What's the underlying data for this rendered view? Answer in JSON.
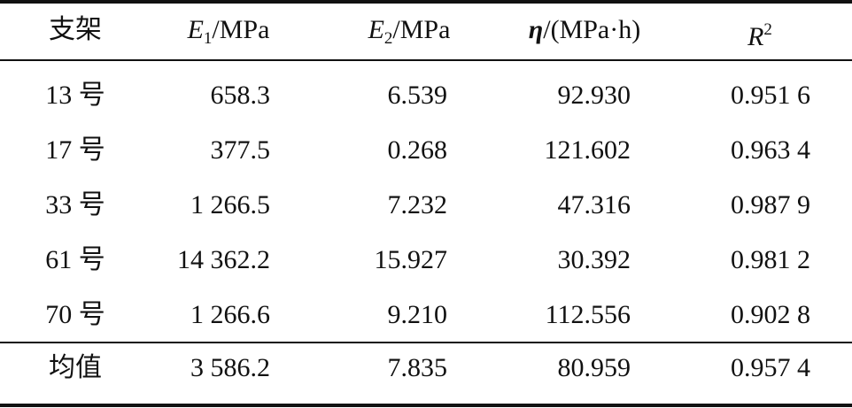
{
  "table": {
    "header": [
      {
        "parts": [
          {
            "text": "支架"
          }
        ]
      },
      {
        "parts": [
          {
            "text": "E",
            "italic": true
          },
          {
            "text": "1",
            "sub": true
          },
          {
            "text": "/MPa"
          }
        ]
      },
      {
        "parts": [
          {
            "text": "E",
            "italic": true
          },
          {
            "text": "2",
            "sub": true
          },
          {
            "text": "/MPa"
          }
        ]
      },
      {
        "parts": [
          {
            "text": "η",
            "italic": true,
            "bold": true
          },
          {
            "text": "/(MPa·h)"
          }
        ]
      },
      {
        "parts": [
          {
            "text": "R",
            "italic": true
          },
          {
            "text": "2",
            "sup": true
          }
        ]
      }
    ],
    "rows": [
      [
        "13 号",
        "658.3",
        "6.539",
        "92.930",
        "0.951 6"
      ],
      [
        "17 号",
        "377.5",
        "0.268",
        "121.602",
        "0.963 4"
      ],
      [
        "33 号",
        "1 266.5",
        "7.232",
        "47.316",
        "0.987 9"
      ],
      [
        "61 号",
        "14 362.2",
        "15.927",
        "30.392",
        "0.981 2"
      ],
      [
        "70 号",
        "1 266.6",
        "9.210",
        "112.556",
        "0.902 8"
      ]
    ],
    "summary": [
      "均值",
      "3 586.2",
      "7.835",
      "80.959",
      "0.957 4"
    ]
  }
}
